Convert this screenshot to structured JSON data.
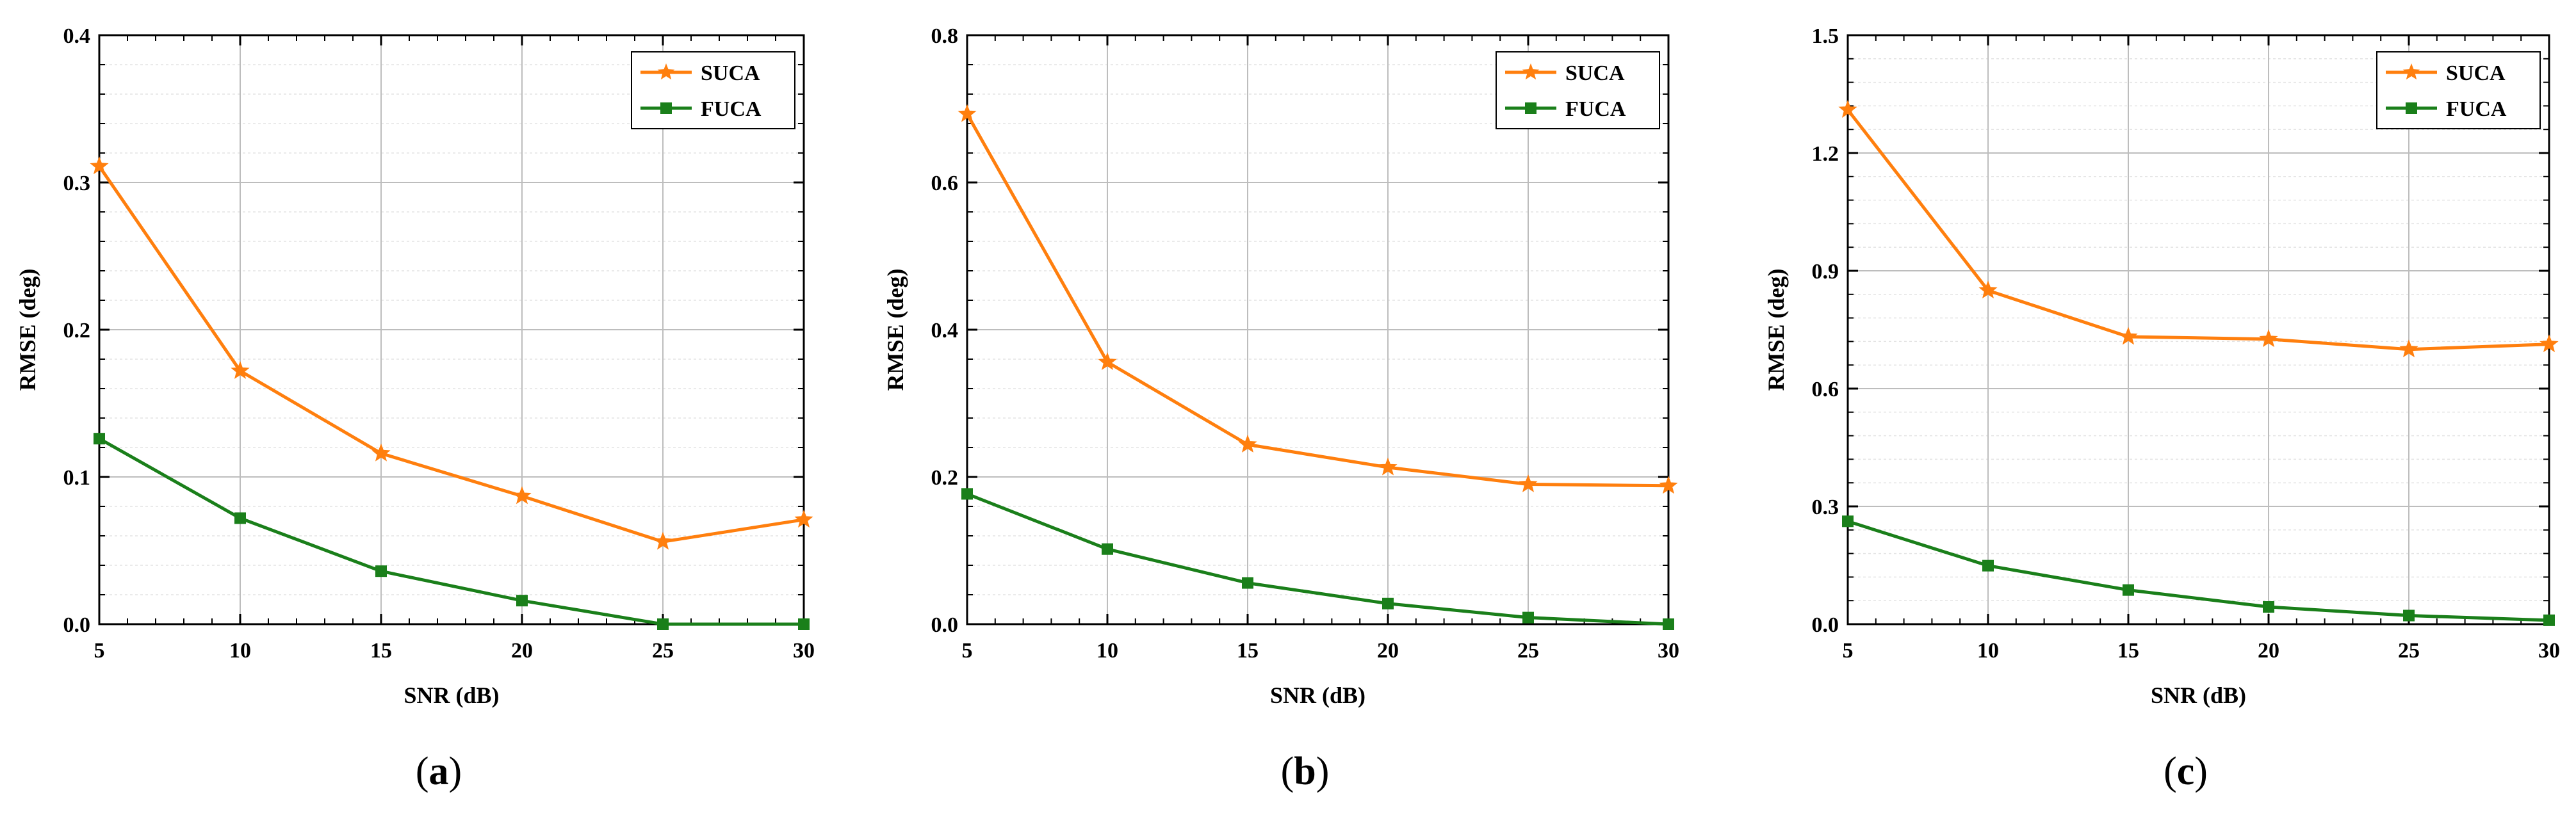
{
  "colors": {
    "suca": "#ff7f0e",
    "fuca": "#1a7f1a",
    "grid": "#bdbdbd",
    "axis": "#000000"
  },
  "chart_data": [
    {
      "type": "line",
      "panel_label": "a",
      "xlabel": "SNR (dB)",
      "ylabel": "RMSE (deg)",
      "x": [
        5,
        10,
        15,
        20,
        25,
        30
      ],
      "xlim": [
        5,
        30
      ],
      "ylim": [
        0,
        0.4
      ],
      "xticks": [
        "5",
        "10",
        "15",
        "20",
        "25",
        "30"
      ],
      "yticks": [
        "0.0",
        "0.1",
        "0.2",
        "0.3",
        "0.4"
      ],
      "grid": true,
      "legend_position": "top-right",
      "series": [
        {
          "name": "SUCA",
          "marker": "star",
          "color": "#ff7f0e",
          "values": [
            0.311,
            0.172,
            0.116,
            0.087,
            0.056,
            0.071
          ]
        },
        {
          "name": "FUCA",
          "marker": "square",
          "color": "#1a7f1a",
          "values": [
            0.126,
            0.072,
            0.036,
            0.016,
            0.0,
            0.0
          ]
        }
      ]
    },
    {
      "type": "line",
      "panel_label": "b",
      "xlabel": "SNR (dB)",
      "ylabel": "RMSE (deg)",
      "x": [
        5,
        10,
        15,
        20,
        25,
        30
      ],
      "xlim": [
        5,
        30
      ],
      "ylim": [
        0,
        0.8
      ],
      "xticks": [
        "5",
        "10",
        "15",
        "20",
        "25",
        "30"
      ],
      "yticks": [
        "0.0",
        "0.2",
        "0.4",
        "0.6",
        "0.8"
      ],
      "grid": true,
      "legend_position": "top-right",
      "series": [
        {
          "name": "SUCA",
          "marker": "star",
          "color": "#ff7f0e",
          "values": [
            0.693,
            0.356,
            0.244,
            0.213,
            0.19,
            0.188
          ]
        },
        {
          "name": "FUCA",
          "marker": "square",
          "color": "#1a7f1a",
          "values": [
            0.177,
            0.102,
            0.056,
            0.028,
            0.009,
            0.0
          ]
        }
      ]
    },
    {
      "type": "line",
      "panel_label": "c",
      "xlabel": "SNR (dB)",
      "ylabel": "RMSE (deg)",
      "x": [
        5,
        10,
        15,
        20,
        25,
        30
      ],
      "xlim": [
        5,
        30
      ],
      "ylim": [
        0,
        1.5
      ],
      "xticks": [
        "5",
        "10",
        "15",
        "20",
        "25",
        "30"
      ],
      "yticks": [
        "0.0",
        "0.3",
        "0.6",
        "0.9",
        "1.2",
        "1.5"
      ],
      "grid": true,
      "legend_position": "top-right",
      "series": [
        {
          "name": "SUCA",
          "marker": "star",
          "color": "#ff7f0e",
          "values": [
            1.31,
            0.85,
            0.732,
            0.726,
            0.7,
            0.713
          ]
        },
        {
          "name": "FUCA",
          "marker": "square",
          "color": "#1a7f1a",
          "values": [
            0.262,
            0.149,
            0.087,
            0.044,
            0.022,
            0.01
          ]
        }
      ]
    }
  ]
}
